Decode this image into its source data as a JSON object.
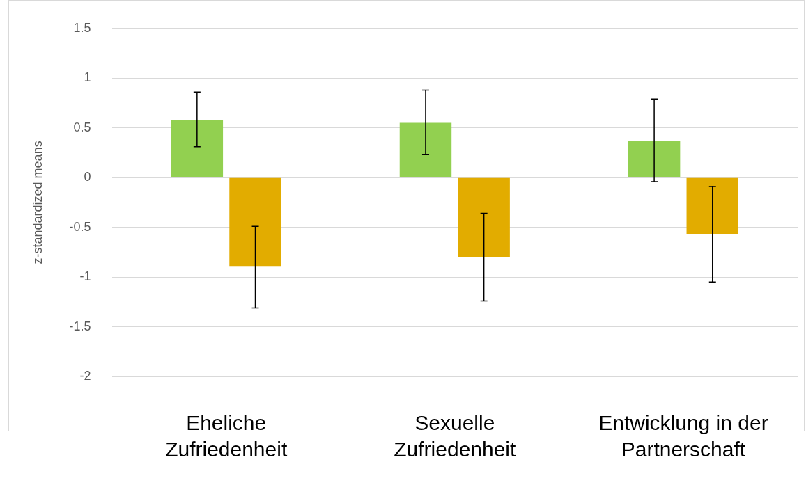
{
  "chart_data": {
    "type": "bar",
    "ylabel": "z-standardized means",
    "categories": [
      "Eheliche Zufriedenheit",
      "Sexuelle Zufriedenheit",
      "Entwicklung in der Partnerschaft"
    ],
    "series": [
      {
        "color": "#92d050",
        "values": [
          0.58,
          0.55,
          0.37
        ],
        "errors": [
          [
            0.31,
            0.86
          ],
          [
            0.23,
            0.88
          ],
          [
            -0.04,
            0.79
          ]
        ]
      },
      {
        "color": "#e2ac00",
        "values": [
          -0.89,
          -0.8,
          -0.57
        ],
        "errors": [
          [
            -1.31,
            -0.49
          ],
          [
            -1.24,
            -0.36
          ],
          [
            -1.05,
            -0.09
          ]
        ]
      }
    ],
    "ylim": [
      -2,
      1.5
    ],
    "yticks": [
      -2,
      -1.5,
      -1,
      -0.5,
      0,
      0.5,
      1,
      1.5
    ],
    "grid": "y",
    "legend": false
  }
}
